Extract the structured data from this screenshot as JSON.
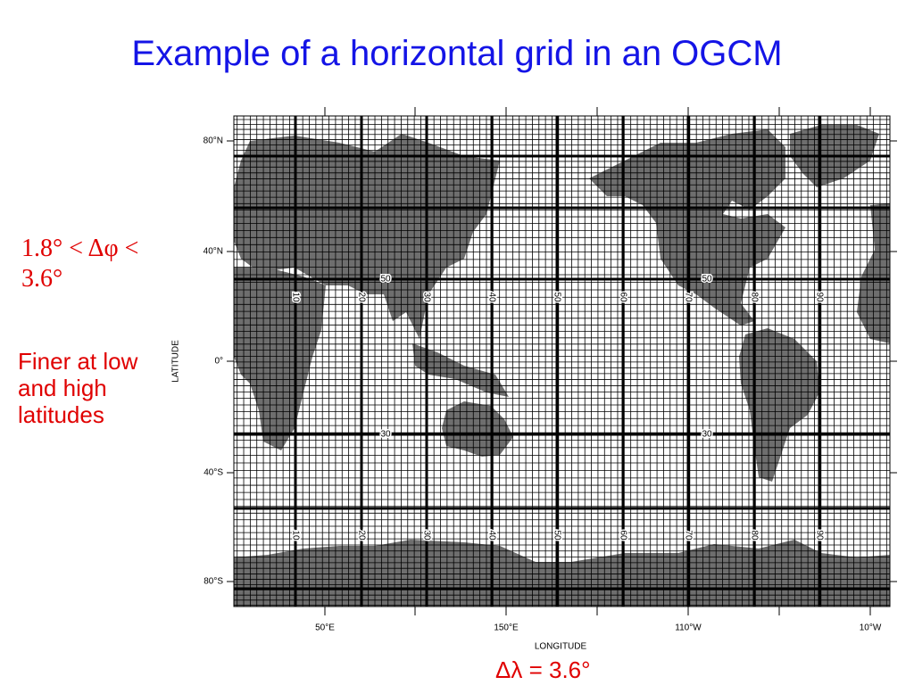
{
  "title": "Example of a horizontal grid in an OGCM",
  "notes": {
    "lat_resolution": "1.8° < Δφ < 3.6°",
    "finer": "Finer at low and high latitudes",
    "lon_resolution": "Δλ = 3.6°"
  },
  "figure": {
    "y_axis_label": "LATITUDE",
    "x_axis_label": "LONGITUDE",
    "lat_labels": [
      "80°N",
      "40°N",
      "0°",
      "40°S",
      "80°S"
    ],
    "lon_labels": [
      "50°E",
      "150°E",
      "110°W",
      "10°W"
    ],
    "i_labels_upper": [
      "10",
      "20",
      "30",
      "40",
      "50",
      "60",
      "70",
      "80",
      "90"
    ],
    "i_labels_lower": [
      "10",
      "20",
      "30",
      "40",
      "50",
      "60",
      "70",
      "80",
      "90"
    ],
    "j_labels": [
      "50",
      "50",
      "30",
      "30"
    ]
  }
}
